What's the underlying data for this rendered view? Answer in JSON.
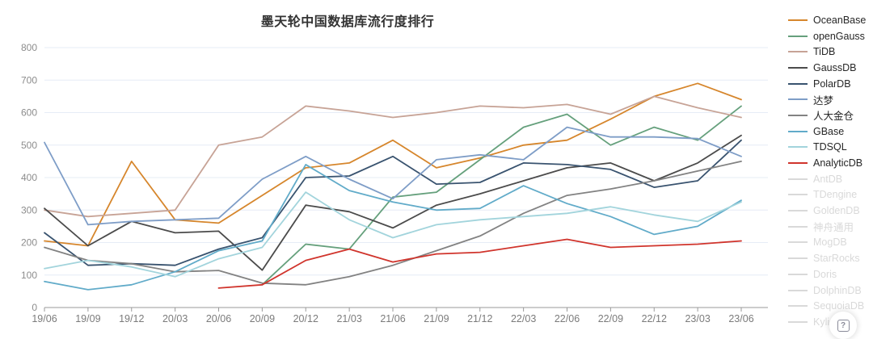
{
  "chart": {
    "title": "墨天轮中国数据库流行度排行",
    "style": {
      "title_color": "#333333",
      "grid_color": "#e6ecf6",
      "axis_color": "#9a9a9a",
      "y_label_color": "#8c8c8c",
      "x_label_color": "#7b7b7b",
      "disabled_color": "#d9d9d9",
      "background": "#ffffff"
    },
    "help_button_glyph": "?"
  },
  "chart_data": {
    "type": "line",
    "title": "墨天轮中国数据库流行度排行",
    "xlabel": "",
    "ylabel": "",
    "ylim": [
      0,
      800
    ],
    "y_ticks": [
      800,
      700,
      600,
      500,
      400,
      300,
      200,
      100,
      0
    ],
    "grid": true,
    "legend_position": "right",
    "categories": [
      "19/06",
      "19/09",
      "19/12",
      "20/03",
      "20/06",
      "20/09",
      "20/12",
      "21/03",
      "21/06",
      "21/09",
      "21/12",
      "22/03",
      "22/06",
      "22/09",
      "22/12",
      "23/03",
      "23/06"
    ],
    "series": [
      {
        "name": "OceanBase",
        "color": "#d6862c",
        "enabled": true,
        "values": [
          205,
          190,
          450,
          270,
          260,
          345,
          430,
          445,
          515,
          430,
          460,
          500,
          515,
          580,
          650,
          690,
          640
        ]
      },
      {
        "name": "openGauss",
        "color": "#65a07c",
        "enabled": true,
        "values": [
          null,
          null,
          null,
          null,
          null,
          70,
          195,
          180,
          340,
          355,
          455,
          555,
          595,
          500,
          555,
          515,
          620
        ]
      },
      {
        "name": "TiDB",
        "color": "#c7a396",
        "enabled": true,
        "values": [
          300,
          280,
          290,
          300,
          500,
          525,
          620,
          605,
          585,
          600,
          620,
          615,
          625,
          595,
          650,
          615,
          585
        ]
      },
      {
        "name": "GaussDB",
        "color": "#4b4b4b",
        "enabled": true,
        "values": [
          305,
          190,
          265,
          230,
          235,
          115,
          315,
          295,
          245,
          315,
          350,
          390,
          430,
          445,
          390,
          445,
          530
        ]
      },
      {
        "name": "PolarDB",
        "color": "#39536f",
        "enabled": true,
        "values": [
          230,
          130,
          135,
          130,
          180,
          215,
          400,
          405,
          465,
          380,
          385,
          445,
          440,
          425,
          370,
          390,
          515
        ]
      },
      {
        "name": "达梦",
        "color": "#7e9dc7",
        "enabled": true,
        "values": [
          508,
          255,
          265,
          270,
          275,
          395,
          465,
          395,
          335,
          455,
          470,
          455,
          555,
          525,
          525,
          520,
          465
        ]
      },
      {
        "name": "人大金仓",
        "color": "#828282",
        "enabled": true,
        "values": [
          185,
          145,
          135,
          110,
          114,
          75,
          70,
          95,
          130,
          175,
          220,
          290,
          345,
          365,
          390,
          420,
          450
        ]
      },
      {
        "name": "GBase",
        "color": "#61abc9",
        "enabled": true,
        "values": [
          80,
          55,
          70,
          110,
          175,
          205,
          440,
          360,
          325,
          300,
          305,
          375,
          320,
          280,
          225,
          250,
          330
        ]
      },
      {
        "name": "TDSQL",
        "color": "#a2d4dc",
        "enabled": true,
        "values": [
          120,
          145,
          125,
          95,
          150,
          185,
          355,
          270,
          215,
          255,
          270,
          280,
          290,
          310,
          285,
          265,
          325
        ]
      },
      {
        "name": "AnalyticDB",
        "color": "#d0342c",
        "enabled": true,
        "values": [
          null,
          null,
          null,
          null,
          60,
          70,
          145,
          180,
          140,
          165,
          170,
          190,
          210,
          185,
          190,
          195,
          205
        ]
      },
      {
        "name": "AntDB",
        "color": "#d9d9d9",
        "enabled": false,
        "values": []
      },
      {
        "name": "TDengine",
        "color": "#d9d9d9",
        "enabled": false,
        "values": []
      },
      {
        "name": "GoldenDB",
        "color": "#d9d9d9",
        "enabled": false,
        "values": []
      },
      {
        "name": "神舟通用",
        "color": "#d9d9d9",
        "enabled": false,
        "values": []
      },
      {
        "name": "MogDB",
        "color": "#d9d9d9",
        "enabled": false,
        "values": []
      },
      {
        "name": "StarRocks",
        "color": "#d9d9d9",
        "enabled": false,
        "values": []
      },
      {
        "name": "Doris",
        "color": "#d9d9d9",
        "enabled": false,
        "values": []
      },
      {
        "name": "DolphinDB",
        "color": "#d9d9d9",
        "enabled": false,
        "values": []
      },
      {
        "name": "SequoiaDB",
        "color": "#d9d9d9",
        "enabled": false,
        "values": []
      },
      {
        "name": "Kylige",
        "color": "#d9d9d9",
        "enabled": false,
        "values": []
      }
    ]
  }
}
